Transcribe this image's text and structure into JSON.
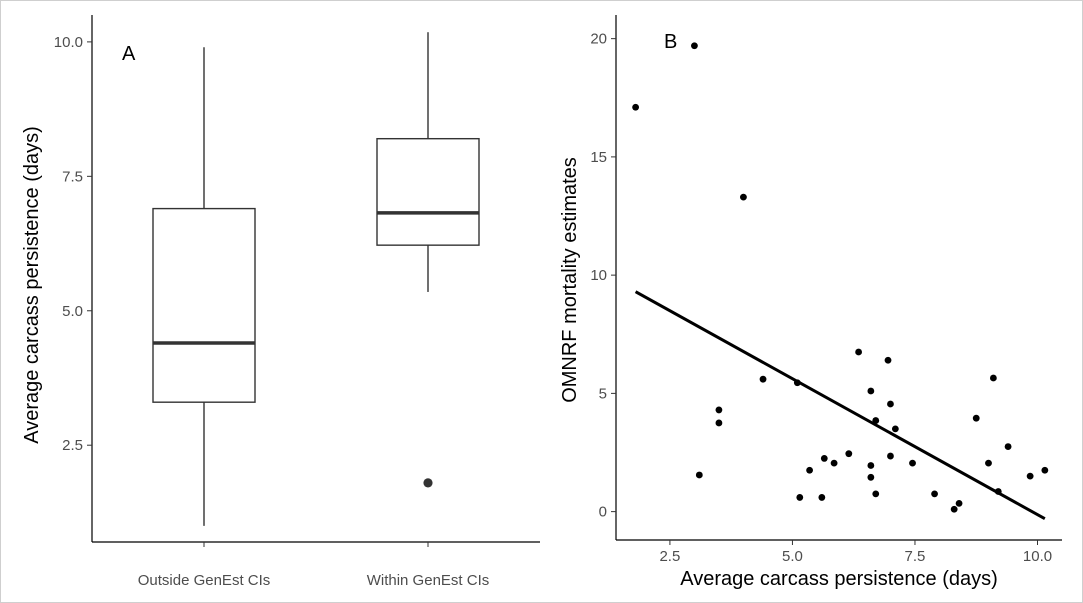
{
  "chart_data": [
    {
      "type": "box",
      "panel_label": "A",
      "xlabel": "",
      "ylabel": "Average carcass persistence (days)",
      "ylim": [
        0.7,
        10.5
      ],
      "yticks": [
        2.5,
        5.0,
        7.5,
        10.0
      ],
      "ytick_labels": [
        "2.5",
        "5.0",
        "7.5",
        "10.0"
      ],
      "categories": [
        "Outside GenEst CIs",
        "Within GenEst CIs"
      ],
      "boxes": [
        {
          "name": "Outside GenEst CIs",
          "whisker_low": 1.0,
          "q1": 3.3,
          "median": 4.4,
          "q3": 6.9,
          "whisker_high": 9.9,
          "outliers": []
        },
        {
          "name": "Within GenEst CIs",
          "whisker_low": 5.35,
          "q1": 6.22,
          "median": 6.82,
          "q3": 8.2,
          "whisker_high": 10.18,
          "outliers": [
            1.8
          ]
        }
      ],
      "grid": false,
      "colors": {
        "box_outline": "#333333",
        "median": "#333333",
        "outlier": "#333333"
      }
    },
    {
      "type": "scatter",
      "panel_label": "B",
      "xlabel": "Average carcass persistence (days)",
      "ylabel": "OMNRF mortality estimates",
      "xlim": [
        1.4,
        10.5
      ],
      "ylim": [
        -1.2,
        21.0
      ],
      "xticks": [
        2.5,
        5.0,
        7.5,
        10.0
      ],
      "xtick_labels": [
        "2.5",
        "5.0",
        "7.5",
        "10.0"
      ],
      "yticks": [
        0,
        5,
        10,
        15,
        20
      ],
      "ytick_labels": [
        "0",
        "5",
        "10",
        "15",
        "20"
      ],
      "points": [
        {
          "x": 1.8,
          "y": 17.1
        },
        {
          "x": 3.0,
          "y": 19.7
        },
        {
          "x": 3.1,
          "y": 1.55
        },
        {
          "x": 3.5,
          "y": 4.3
        },
        {
          "x": 3.5,
          "y": 3.75
        },
        {
          "x": 4.0,
          "y": 13.3
        },
        {
          "x": 4.4,
          "y": 5.6
        },
        {
          "x": 5.1,
          "y": 5.45
        },
        {
          "x": 5.15,
          "y": 0.6
        },
        {
          "x": 5.35,
          "y": 1.75
        },
        {
          "x": 5.6,
          "y": 0.6
        },
        {
          "x": 5.65,
          "y": 2.25
        },
        {
          "x": 5.85,
          "y": 2.05
        },
        {
          "x": 6.15,
          "y": 2.45
        },
        {
          "x": 6.35,
          "y": 6.75
        },
        {
          "x": 6.6,
          "y": 5.1
        },
        {
          "x": 6.6,
          "y": 1.95
        },
        {
          "x": 6.6,
          "y": 1.45
        },
        {
          "x": 6.7,
          "y": 3.85
        },
        {
          "x": 6.7,
          "y": 0.75
        },
        {
          "x": 6.95,
          "y": 6.4
        },
        {
          "x": 7.0,
          "y": 4.55
        },
        {
          "x": 7.0,
          "y": 2.35
        },
        {
          "x": 7.1,
          "y": 3.5
        },
        {
          "x": 7.45,
          "y": 2.05
        },
        {
          "x": 7.9,
          "y": 0.75
        },
        {
          "x": 8.3,
          "y": 0.1
        },
        {
          "x": 8.4,
          "y": 0.35
        },
        {
          "x": 8.75,
          "y": 3.95
        },
        {
          "x": 9.0,
          "y": 2.05
        },
        {
          "x": 9.1,
          "y": 5.65
        },
        {
          "x": 9.2,
          "y": 0.85
        },
        {
          "x": 9.4,
          "y": 2.75
        },
        {
          "x": 9.85,
          "y": 1.5
        },
        {
          "x": 10.15,
          "y": 1.75
        }
      ],
      "trend_line": {
        "x": [
          1.8,
          10.15
        ],
        "y": [
          9.3,
          -0.3
        ]
      },
      "grid": false,
      "colors": {
        "points": "#000000",
        "trend_line": "#000000"
      }
    }
  ]
}
